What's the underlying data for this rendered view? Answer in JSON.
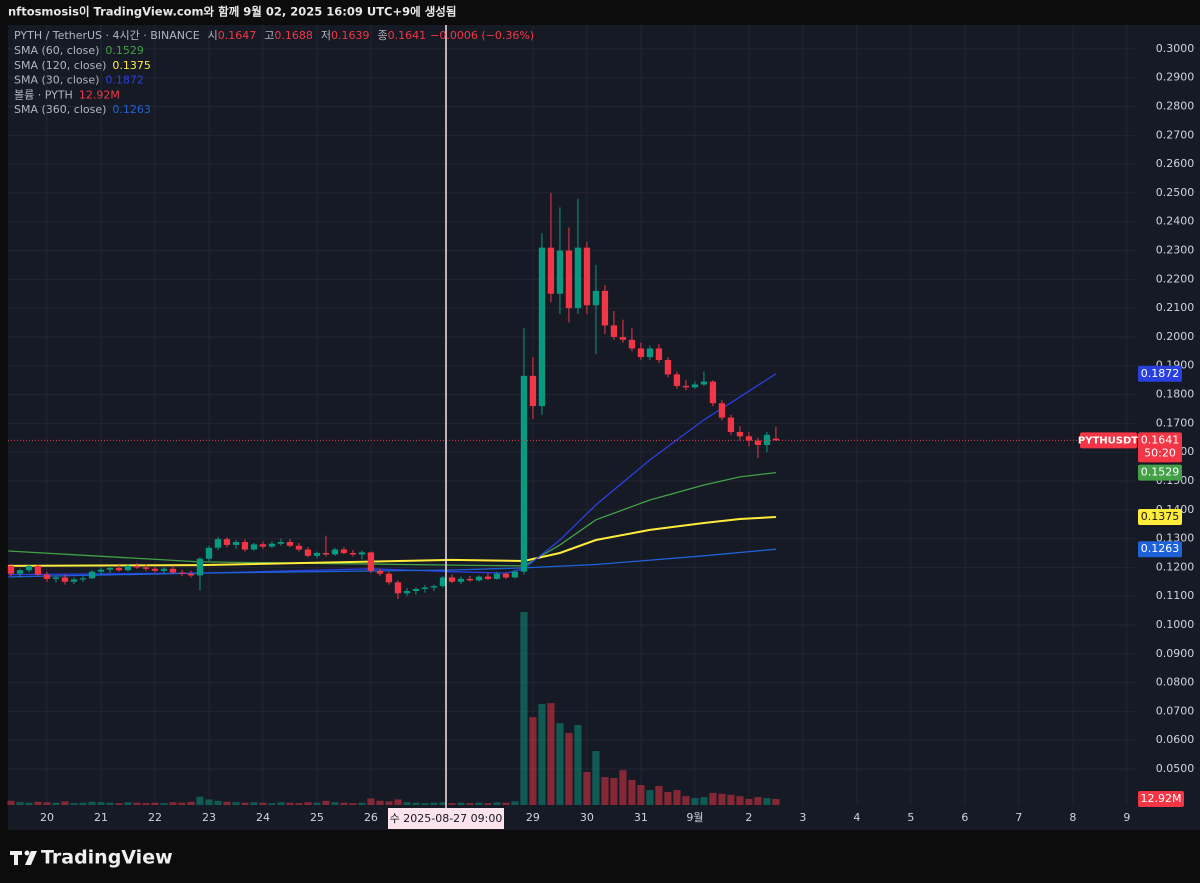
{
  "header": {
    "title": "nftosmosis이 TradingView.com와 함께 9월 02, 2025 16:09 UTC+9에 생성됨"
  },
  "footer": {
    "brand": "TradingView"
  },
  "chart_data": {
    "type": "candlestick",
    "title": "PYTH / TetherUS · 4시간 · BINANCE",
    "ohlc_labels": [
      "시",
      "고",
      "저",
      "종"
    ],
    "change": "−0.0006 (−0.36%)",
    "symbol": "PYTHUSDT",
    "countdown": "50:20",
    "crosshair_label": "수 2025-08-27  09:00",
    "up_color": "#089981",
    "down_color": "#f23645",
    "open": [
      0.1205,
      0.1178,
      0.119,
      0.1205,
      0.1175,
      0.116,
      0.1165,
      0.115,
      0.1158,
      0.1162,
      0.1185,
      0.1192,
      0.1198,
      0.119,
      0.1205,
      0.12,
      0.1195,
      0.1188,
      0.1195,
      0.1182,
      0.1178,
      0.1172,
      0.123,
      0.1268,
      0.1298,
      0.1278,
      0.1288,
      0.1262,
      0.128,
      0.1272,
      0.1282,
      0.1288,
      0.1275,
      0.1262,
      0.124,
      0.125,
      0.1245,
      0.1262,
      0.125,
      0.1245,
      0.1252,
      0.1188,
      0.1178,
      0.1148,
      0.111,
      0.1118,
      0.1125,
      0.113,
      0.1135,
      0.1165,
      0.115,
      0.116,
      0.1155,
      0.1168,
      0.116,
      0.1178,
      0.1165,
      0.1185,
      0.1865,
      0.176,
      0.231,
      0.215,
      0.23,
      0.21,
      0.231,
      0.211,
      0.216,
      0.204,
      0.2,
      0.199,
      0.196,
      0.193,
      0.196,
      0.192,
      0.187,
      0.183,
      0.1825,
      0.1835,
      0.1845,
      0.177,
      0.172,
      0.167,
      0.1655,
      0.164,
      0.1625,
      0.1647
    ],
    "high": [
      0.1212,
      0.1195,
      0.1208,
      0.121,
      0.1185,
      0.1172,
      0.1175,
      0.1165,
      0.117,
      0.119,
      0.12,
      0.1205,
      0.1208,
      0.1212,
      0.1215,
      0.121,
      0.1202,
      0.12,
      0.1205,
      0.1192,
      0.1188,
      0.1235,
      0.1275,
      0.1305,
      0.1305,
      0.1295,
      0.1298,
      0.1285,
      0.129,
      0.129,
      0.13,
      0.1298,
      0.1285,
      0.127,
      0.1255,
      0.131,
      0.1268,
      0.127,
      0.126,
      0.1258,
      0.1255,
      0.1195,
      0.1185,
      0.1155,
      0.1128,
      0.113,
      0.1138,
      0.114,
      0.117,
      0.1175,
      0.1168,
      0.117,
      0.1172,
      0.118,
      0.1185,
      0.1182,
      0.119,
      0.203,
      0.193,
      0.236,
      0.25,
      0.245,
      0.238,
      0.248,
      0.233,
      0.225,
      0.218,
      0.209,
      0.206,
      0.203,
      0.198,
      0.197,
      0.1975,
      0.193,
      0.188,
      0.185,
      0.1845,
      0.188,
      0.185,
      0.178,
      0.173,
      0.169,
      0.167,
      0.165,
      0.167,
      0.1688
    ],
    "low": [
      0.117,
      0.1165,
      0.1182,
      0.117,
      0.115,
      0.1148,
      0.114,
      0.1142,
      0.115,
      0.116,
      0.1175,
      0.118,
      0.1185,
      0.1186,
      0.1195,
      0.1188,
      0.1182,
      0.118,
      0.1178,
      0.117,
      0.1165,
      0.112,
      0.1222,
      0.126,
      0.127,
      0.1265,
      0.1255,
      0.1258,
      0.1265,
      0.1268,
      0.1275,
      0.127,
      0.1255,
      0.1235,
      0.1232,
      0.1238,
      0.124,
      0.1245,
      0.1238,
      0.1228,
      0.118,
      0.117,
      0.114,
      0.109,
      0.11,
      0.1105,
      0.1112,
      0.1118,
      0.113,
      0.1145,
      0.1142,
      0.115,
      0.115,
      0.1155,
      0.1158,
      0.116,
      0.1162,
      0.1175,
      0.1715,
      0.173,
      0.212,
      0.208,
      0.205,
      0.208,
      0.208,
      0.194,
      0.201,
      0.199,
      0.198,
      0.195,
      0.192,
      0.192,
      0.191,
      0.186,
      0.182,
      0.1815,
      0.182,
      0.183,
      0.176,
      0.171,
      0.166,
      0.164,
      0.162,
      0.158,
      0.16,
      0.1639
    ],
    "close": [
      0.1178,
      0.119,
      0.1205,
      0.1175,
      0.116,
      0.1165,
      0.115,
      0.1158,
      0.1162,
      0.1185,
      0.1192,
      0.1198,
      0.119,
      0.1205,
      0.12,
      0.1195,
      0.1188,
      0.1195,
      0.1182,
      0.1178,
      0.1172,
      0.123,
      0.1268,
      0.1298,
      0.1278,
      0.1288,
      0.1262,
      0.128,
      0.1272,
      0.1282,
      0.1288,
      0.1275,
      0.1262,
      0.124,
      0.125,
      0.1245,
      0.1262,
      0.125,
      0.1245,
      0.1252,
      0.1188,
      0.1178,
      0.1148,
      0.111,
      0.1118,
      0.1125,
      0.113,
      0.1135,
      0.1165,
      0.115,
      0.116,
      0.1155,
      0.1168,
      0.116,
      0.1178,
      0.1165,
      0.1185,
      0.1865,
      0.176,
      0.231,
      0.215,
      0.23,
      0.21,
      0.231,
      0.211,
      0.216,
      0.204,
      0.2,
      0.199,
      0.196,
      0.193,
      0.196,
      0.192,
      0.187,
      0.183,
      0.1825,
      0.1835,
      0.1845,
      0.177,
      0.172,
      0.167,
      0.1655,
      0.164,
      0.1625,
      0.166,
      0.1641
    ],
    "volume": {
      "name": "볼륨 · PYTH",
      "last_label": "12.92M",
      "vlim": [
        0,
        430000000
      ],
      "values": [
        9000000,
        6000000,
        5000000,
        7000000,
        6000000,
        5000000,
        8000000,
        4000000,
        5000000,
        7000000,
        6000000,
        5000000,
        4000000,
        6000000,
        5000000,
        4000000,
        5000000,
        4000000,
        6000000,
        5000000,
        7000000,
        18000000,
        12000000,
        9000000,
        7000000,
        6000000,
        5000000,
        6000000,
        5000000,
        4000000,
        6000000,
        5000000,
        4000000,
        6000000,
        5000000,
        9000000,
        6000000,
        5000000,
        4000000,
        5000000,
        14000000,
        9000000,
        8000000,
        12000000,
        6000000,
        5000000,
        4000000,
        5000000,
        6000000,
        4000000,
        5000000,
        4000000,
        5000000,
        4000000,
        6000000,
        5000000,
        8000000,
        415000000,
        189000000,
        217000000,
        219000000,
        176000000,
        155000000,
        172000000,
        71000000,
        116000000,
        60000000,
        58000000,
        75000000,
        54000000,
        43000000,
        32000000,
        41000000,
        28000000,
        32000000,
        19000000,
        15000000,
        17000000,
        26000000,
        24000000,
        22000000,
        19000000,
        13000000,
        17000000,
        15000000,
        12920000
      ]
    },
    "series": [
      {
        "name": "SMA (60, close)",
        "color": "#43a047",
        "x": [
          -0.3,
          21,
          49,
          57,
          61,
          65,
          71,
          77,
          81,
          85
        ],
        "values": [
          0.1257,
          0.1219,
          0.1208,
          0.1205,
          0.1278,
          0.1365,
          0.1434,
          0.1486,
          0.1514,
          0.1529
        ]
      },
      {
        "name": "SMA (120, close)",
        "color": "#ffeb3b",
        "x": [
          -0.3,
          21,
          49,
          57,
          61,
          65,
          71,
          77,
          81,
          85
        ],
        "values": [
          0.1205,
          0.1208,
          0.1226,
          0.1222,
          0.125,
          0.1295,
          0.133,
          0.1354,
          0.1368,
          0.1375
        ]
      },
      {
        "name": "SMA (30, close)",
        "color": "#2a3fe0",
        "x": [
          -0.3,
          21,
          40,
          49,
          55,
          57,
          61,
          65,
          71,
          77,
          81,
          85
        ],
        "values": [
          0.1175,
          0.118,
          0.1195,
          0.1185,
          0.118,
          0.1195,
          0.1295,
          0.1417,
          0.1573,
          0.1712,
          0.1792,
          0.1872
        ]
      },
      {
        "name": "SMA (360, close)",
        "color": "#1e62d8",
        "x": [
          -0.3,
          21,
          49,
          57,
          65,
          77,
          85
        ],
        "values": [
          0.1167,
          0.118,
          0.1191,
          0.1198,
          0.121,
          0.124,
          0.1263
        ]
      }
    ],
    "xlim": [
      -0.33,
      124.9
    ],
    "xticks": [
      {
        "value": 4,
        "label": "20"
      },
      {
        "value": 10,
        "label": "21"
      },
      {
        "value": 16,
        "label": "22"
      },
      {
        "value": 22,
        "label": "23"
      },
      {
        "value": 28,
        "label": "24"
      },
      {
        "value": 34,
        "label": "25"
      },
      {
        "value": 40,
        "label": "26"
      },
      {
        "value": 58,
        "label": "29"
      },
      {
        "value": 64,
        "label": "30"
      },
      {
        "value": 70,
        "label": "31"
      },
      {
        "value": 76,
        "label": "9월"
      },
      {
        "value": 82,
        "label": "2"
      },
      {
        "value": 88,
        "label": "3"
      },
      {
        "value": 94,
        "label": "4"
      },
      {
        "value": 100,
        "label": "5"
      },
      {
        "value": 106,
        "label": "6"
      },
      {
        "value": 112,
        "label": "7"
      },
      {
        "value": 118,
        "label": "8"
      },
      {
        "value": 124,
        "label": "9"
      }
    ],
    "ylim": [
      0.0375,
      0.3083
    ],
    "yticks": [
      {
        "value": 0.05,
        "label": "0.0500"
      },
      {
        "value": 0.06,
        "label": "0.0600"
      },
      {
        "value": 0.07,
        "label": "0.0700"
      },
      {
        "value": 0.08,
        "label": "0.0800"
      },
      {
        "value": 0.09,
        "label": "0.0900"
      },
      {
        "value": 0.1,
        "label": "0.1000"
      },
      {
        "value": 0.11,
        "label": "0.1100"
      },
      {
        "value": 0.12,
        "label": "0.1200"
      },
      {
        "value": 0.13,
        "label": "0.1300"
      },
      {
        "value": 0.14,
        "label": "0.1400"
      },
      {
        "value": 0.15,
        "label": "0.1500"
      },
      {
        "value": 0.16,
        "label": "0.1600"
      },
      {
        "value": 0.17,
        "label": "0.1700"
      },
      {
        "value": 0.18,
        "label": "0.1800"
      },
      {
        "value": 0.19,
        "label": "0.1900"
      },
      {
        "value": 0.2,
        "label": "0.2000"
      },
      {
        "value": 0.21,
        "label": "0.2100"
      },
      {
        "value": 0.22,
        "label": "0.2200"
      },
      {
        "value": 0.23,
        "label": "0.2300"
      },
      {
        "value": 0.24,
        "label": "0.2400"
      },
      {
        "value": 0.25,
        "label": "0.2500"
      },
      {
        "value": 0.26,
        "label": "0.2600"
      },
      {
        "value": 0.27,
        "label": "0.2700"
      },
      {
        "value": 0.28,
        "label": "0.2800"
      },
      {
        "value": 0.29,
        "label": "0.2900"
      },
      {
        "value": 0.3,
        "label": "0.3000"
      }
    ],
    "grid": true
  }
}
